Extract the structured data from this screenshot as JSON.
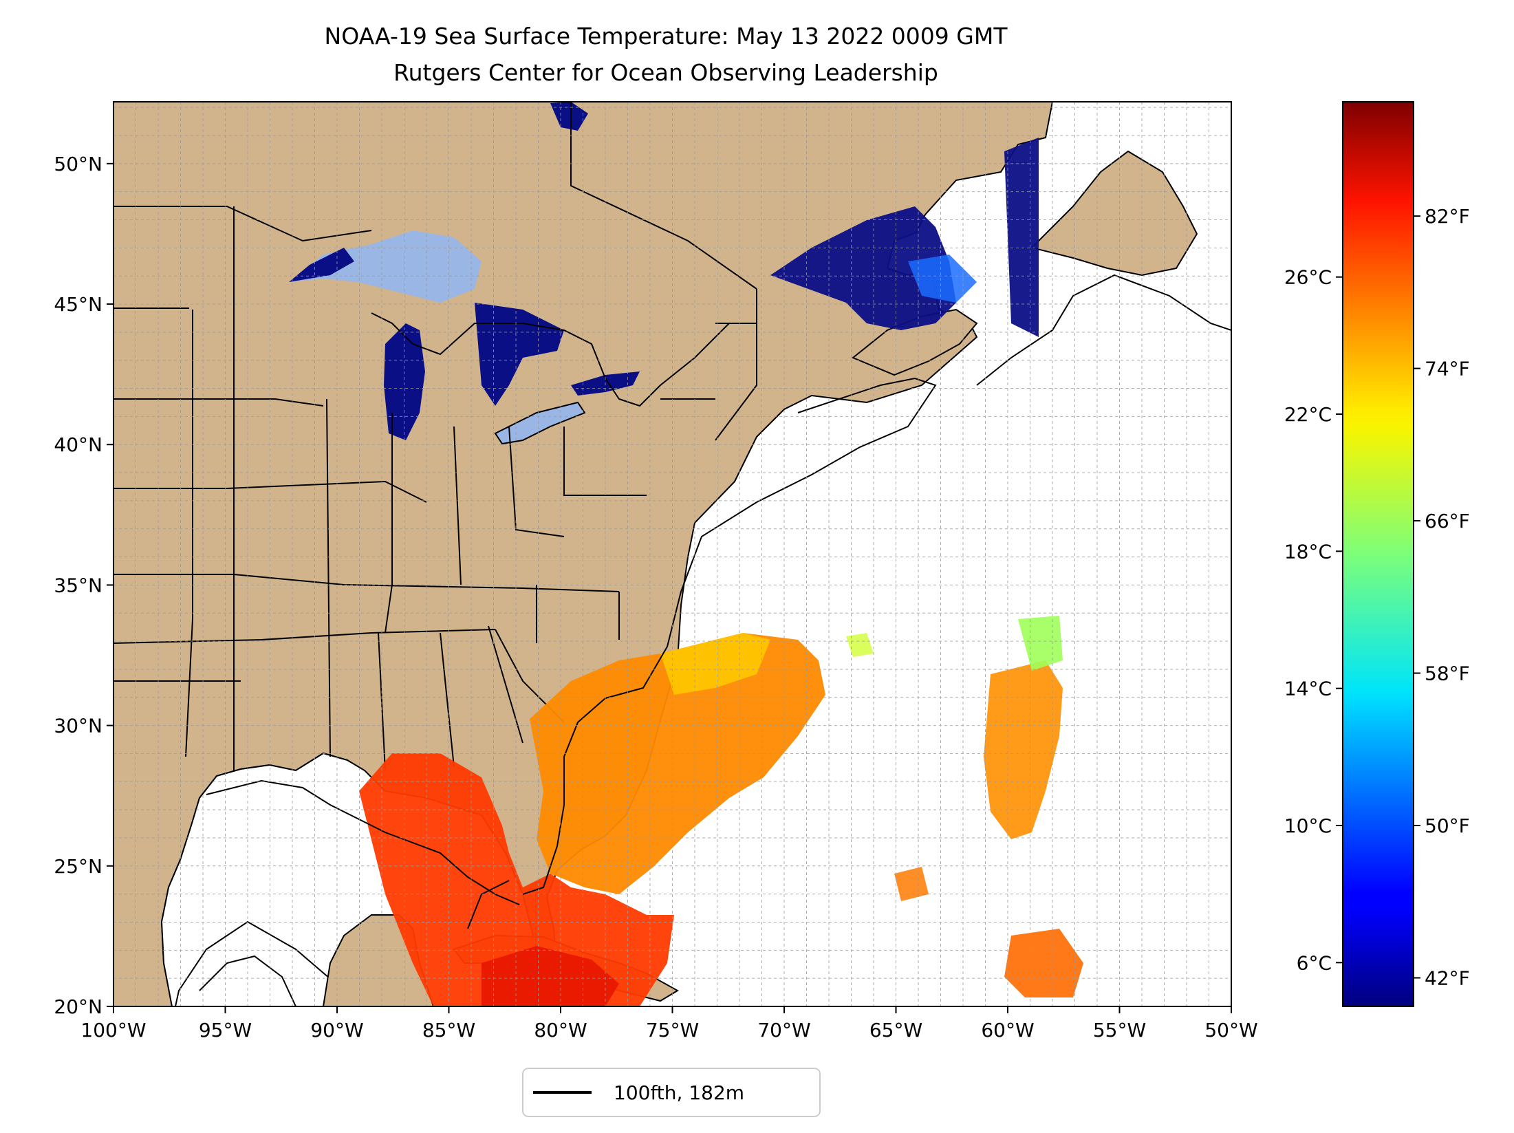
{
  "title_line1": "NOAA-19 Sea Surface Temperature: May 13 2022 0009 GMT",
  "title_line2": "Rutgers Center for Ocean Observing Leadership",
  "map": {
    "extent": {
      "lon": [
        -100,
        -50
      ],
      "lat": [
        20,
        52.2
      ]
    },
    "lon_labels": [
      "100°W",
      "95°W",
      "90°W",
      "85°W",
      "80°W",
      "75°W",
      "70°W",
      "65°W",
      "60°W",
      "55°W",
      "50°W"
    ],
    "lat_labels": [
      "20°N",
      "25°N",
      "30°N",
      "35°N",
      "40°N",
      "45°N",
      "50°N"
    ],
    "land_color": "#D2B48C",
    "lake_color": "#9AB6E4",
    "grid": "dashed, 1 degree"
  },
  "legend": {
    "label": "100fth, 182m"
  },
  "colorbar": {
    "colormap": "jet",
    "celsius_labels": [
      "6°C",
      "10°C",
      "14°C",
      "18°C",
      "22°C",
      "26°C"
    ],
    "fahrenheit_labels": [
      "42°F",
      "50°F",
      "58°F",
      "66°F",
      "74°F",
      "82°F"
    ]
  }
}
